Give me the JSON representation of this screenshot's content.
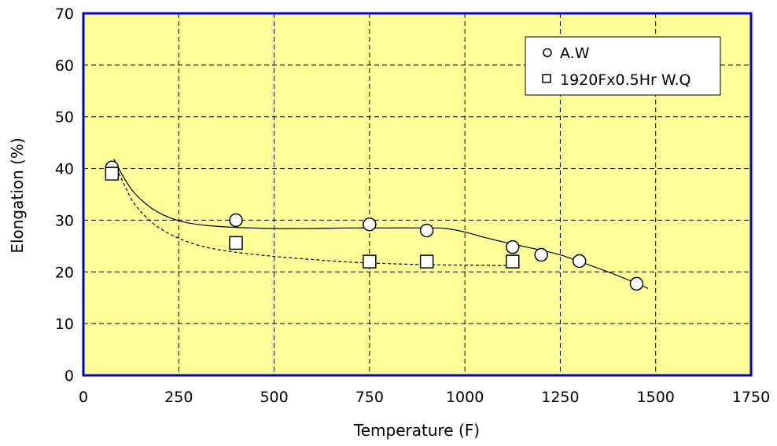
{
  "colors": {
    "plot_background": "#ffff99",
    "plot_border": "#0000cc",
    "grid": "#000000",
    "marker_fill": "#ffffff",
    "marker_stroke": "#000000"
  },
  "chart_data": {
    "type": "scatter",
    "title": "",
    "xlabel": "Temperature (F)",
    "ylabel": "Elongation (%)",
    "xlim": [
      0,
      1750
    ],
    "ylim": [
      0,
      70
    ],
    "xticks": [
      0,
      250,
      500,
      750,
      1000,
      1250,
      1500,
      1750
    ],
    "yticks": [
      0,
      10,
      20,
      30,
      40,
      50,
      60,
      70
    ],
    "x_tick_labels": [
      "0",
      "250",
      "500",
      "750",
      "1000",
      "1250",
      "1500",
      "1750"
    ],
    "y_tick_labels": [
      "0",
      "10",
      "20",
      "30",
      "40",
      "50",
      "60",
      "70"
    ],
    "grid": true,
    "grid_style": "dashed",
    "legend_position": "top-right",
    "series": [
      {
        "name": "A.W",
        "marker": "circle",
        "x": [
          75,
          400,
          750,
          900,
          1125,
          1200,
          1300,
          1450
        ],
        "y": [
          40.2,
          30.0,
          29.2,
          28.0,
          24.8,
          23.3,
          22.1,
          17.7
        ],
        "trend": {
          "style": "solid",
          "x": [
            80,
            100,
            130,
            170,
            210,
            260,
            320,
            400,
            500,
            600,
            700,
            800,
            900,
            950,
            1000,
            1050,
            1100,
            1150,
            1200,
            1250,
            1300,
            1350,
            1400,
            1450,
            1480
          ],
          "y": [
            41.8,
            39.0,
            35.6,
            32.8,
            31.0,
            29.7,
            29.0,
            28.6,
            28.4,
            28.4,
            28.5,
            28.5,
            28.5,
            28.4,
            27.7,
            26.7,
            25.8,
            25.0,
            24.2,
            23.3,
            22.0,
            20.7,
            19.3,
            17.8,
            16.8
          ]
        }
      },
      {
        "name": "1920Fx0.5Hr W.Q",
        "marker": "square",
        "x": [
          75,
          400,
          750,
          900,
          1125
        ],
        "y": [
          39.0,
          25.6,
          22.0,
          22.0,
          22.0
        ],
        "trend": {
          "style": "dashed",
          "x": [
            80,
            100,
            130,
            170,
            210,
            260,
            320,
            400,
            500,
            600,
            700,
            800,
            900,
            1000,
            1125
          ],
          "y": [
            41.0,
            38.0,
            33.6,
            30.2,
            28.0,
            26.2,
            24.8,
            23.8,
            23.0,
            22.4,
            21.9,
            21.6,
            21.4,
            21.3,
            21.2
          ]
        }
      }
    ]
  }
}
